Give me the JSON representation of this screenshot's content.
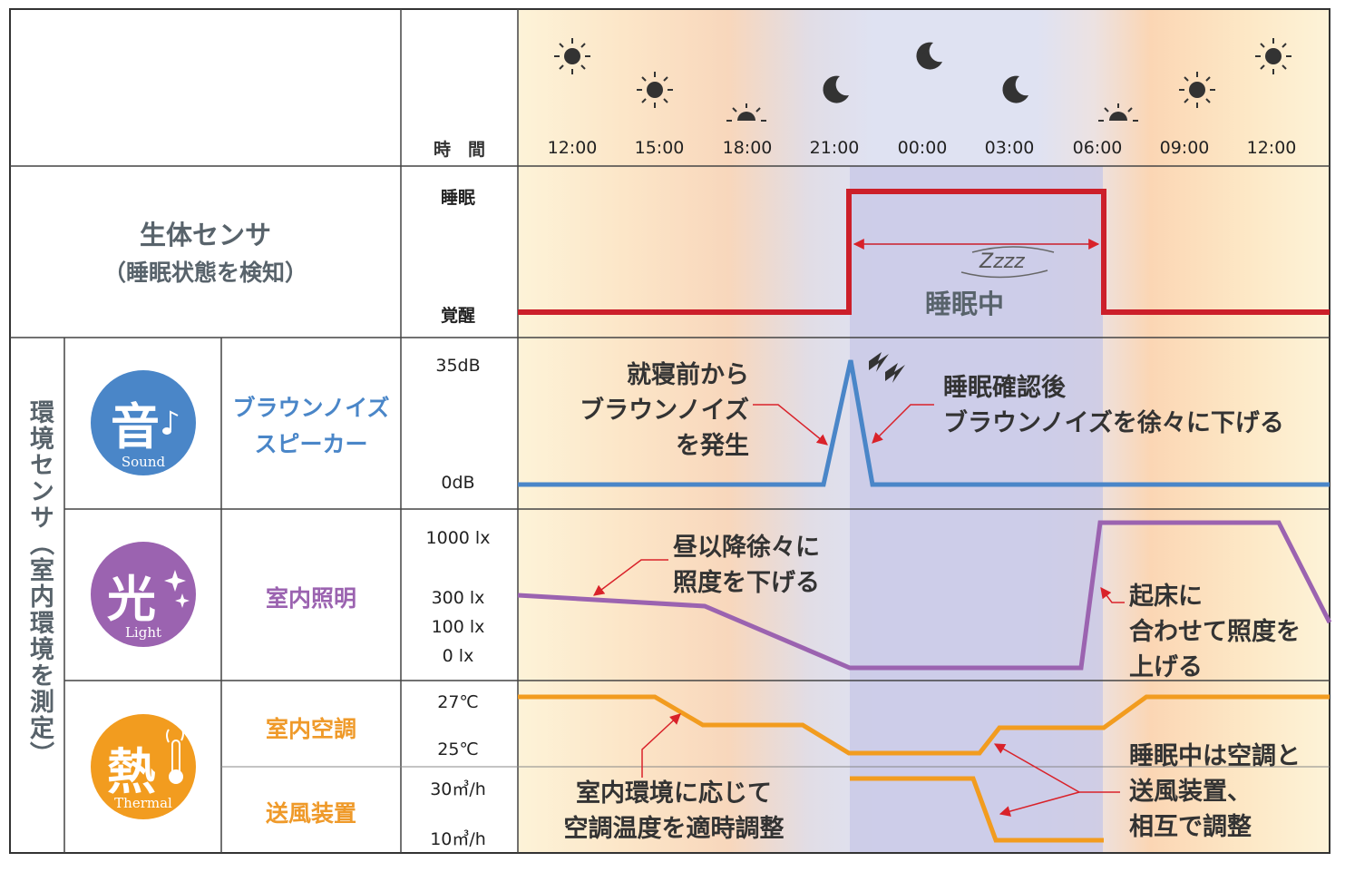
{
  "colors": {
    "sleep_line": "#cc1f2a",
    "sound_line": "#4a86c8",
    "light_line": "#9b63b0",
    "thermal_line": "#f29c1f",
    "sound_badge": "#4a86c8",
    "light_badge": "#9b63b0",
    "thermal_badge": "#f29c1f",
    "night_band": "#c8c8e6",
    "annotation_arrow": "#d9222a"
  },
  "header": {
    "time_label": "時　間",
    "times": [
      "12:00",
      "15:00",
      "18:00",
      "21:00",
      "00:00",
      "03:00",
      "06:00",
      "09:00",
      "12:00"
    ],
    "sky_icons": [
      "sun-icon",
      "sun-icon",
      "sunset-icon",
      "moon-icon",
      "moon-star-icon",
      "moon-icon",
      "sunrise-icon",
      "sun-icon",
      "sun-icon"
    ]
  },
  "bio": {
    "title": "生体センサ",
    "subtitle": "（睡眠状態を検知）",
    "axis_top": "睡眠",
    "axis_bottom": "覚醒",
    "sleep_label": "睡眠中",
    "zzz": "Zzzz"
  },
  "env": {
    "side_label": "環境センサ（室内環境を測定）",
    "sound": {
      "badge_kanji": "音",
      "badge_en": "Sound",
      "device": [
        "ブラウンノイズ",
        "スピーカー"
      ],
      "axis_top": "35dB",
      "axis_bottom": "0dB",
      "note_left": [
        "就寝前から",
        "ブラウンノイズ",
        "を発生"
      ],
      "note_right": [
        "睡眠確認後",
        "ブラウンノイズを徐々に下げる"
      ]
    },
    "light": {
      "badge_kanji": "光",
      "badge_en": "Light",
      "device": "室内照明",
      "axis": [
        "1000 lx",
        "300 lx",
        "100 lx",
        "0 lx"
      ],
      "note_left": [
        "昼以降徐々に",
        "照度を下げる"
      ],
      "note_right": [
        "起床に",
        "合わせて照度を",
        "上げる"
      ]
    },
    "thermal": {
      "badge_kanji": "熱",
      "badge_en": "Thermal",
      "device_ac": "室内空調",
      "device_fan": "送風装置",
      "axis_ac": [
        "27℃",
        "25℃"
      ],
      "axis_fan": [
        "30㎥/h",
        "10㎥/h"
      ],
      "note_left": [
        "室内環境に応じて",
        "空調温度を適時調整"
      ],
      "note_right": [
        "睡眠中は空調と",
        "送風装置、",
        "相互で調整"
      ]
    }
  }
}
